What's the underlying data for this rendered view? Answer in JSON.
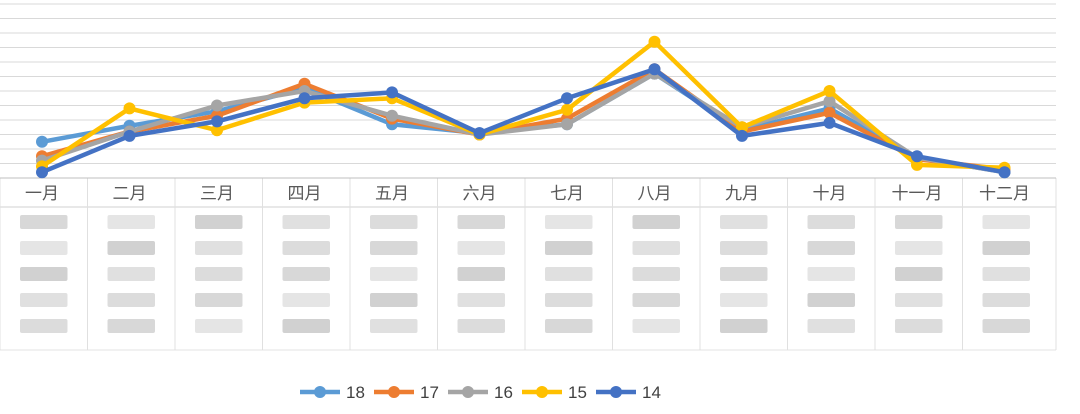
{
  "chart_data": {
    "type": "line",
    "categories": [
      "一月",
      "二月",
      "三月",
      "四月",
      "五月",
      "六月",
      "七月",
      "八月",
      "九月",
      "十月",
      "十一月",
      "十二月"
    ],
    "series": [
      {
        "name": "18",
        "color": "#5B9BD5",
        "values": [
          2.5,
          3.6,
          4.6,
          6.2,
          3.7,
          3.1,
          3.7,
          7.2,
          3.3,
          4.8,
          1.4,
          0.4
        ]
      },
      {
        "name": "17",
        "color": "#ED7D31",
        "values": [
          1.5,
          3.2,
          4.3,
          6.5,
          4.1,
          3.0,
          4.1,
          7.5,
          3.2,
          4.5,
          1.3,
          0.6
        ]
      },
      {
        "name": "16",
        "color": "#A5A5A5",
        "values": [
          1.2,
          3.2,
          5.0,
          6.0,
          4.3,
          3.0,
          3.7,
          7.2,
          3.5,
          5.3,
          1.4,
          0.4
        ]
      },
      {
        "name": "15",
        "color": "#FFC000",
        "values": [
          0.8,
          4.8,
          3.3,
          5.2,
          5.5,
          3.0,
          4.7,
          9.4,
          3.5,
          6.0,
          0.9,
          0.7
        ]
      },
      {
        "name": "14",
        "color": "#4472C4",
        "values": [
          0.4,
          2.9,
          3.9,
          5.5,
          5.9,
          3.1,
          5.5,
          7.5,
          2.9,
          3.8,
          1.5,
          0.4
        ]
      }
    ],
    "legend_position": "bottom",
    "grid": true,
    "ylim": [
      0,
      12
    ]
  }
}
